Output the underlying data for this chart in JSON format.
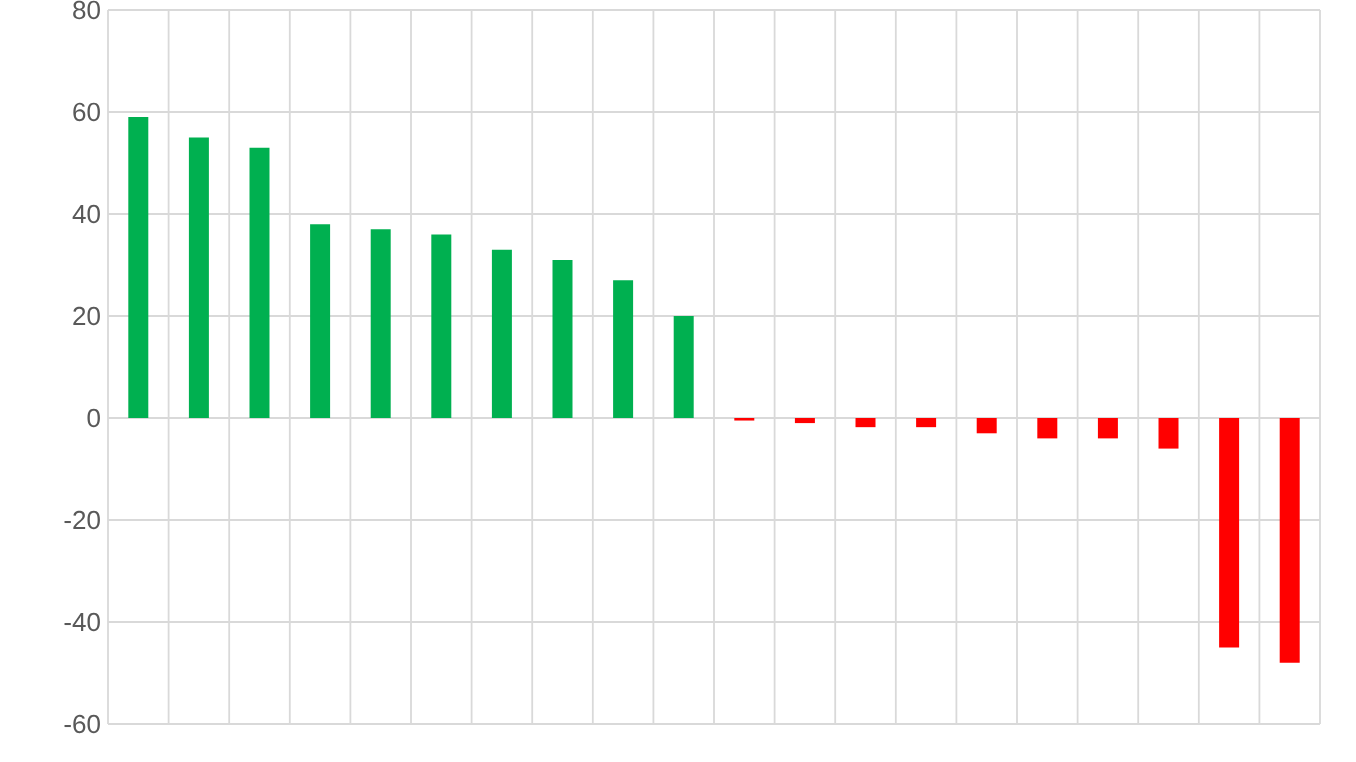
{
  "chart_data": {
    "type": "bar",
    "categories": [
      null,
      null,
      null,
      null,
      null,
      null,
      null,
      null,
      null,
      null,
      null,
      null,
      null,
      null,
      null,
      null,
      null,
      null,
      null,
      null
    ],
    "values": [
      59,
      55,
      53,
      38,
      37,
      36,
      33,
      31,
      27,
      20,
      -0.5,
      -1,
      -1.8,
      -1.8,
      -3,
      -4,
      -4,
      -6,
      -45,
      -48
    ],
    "colors": [
      "#00b050",
      "#00b050",
      "#00b050",
      "#00b050",
      "#00b050",
      "#00b050",
      "#00b050",
      "#00b050",
      "#00b050",
      "#00b050",
      "#ff0000",
      "#ff0000",
      "#ff0000",
      "#ff0000",
      "#ff0000",
      "#ff0000",
      "#ff0000",
      "#ff0000",
      "#ff0000",
      "#ff0000"
    ],
    "ylim": [
      -60,
      80
    ],
    "yticks": [
      -60,
      -40,
      -20,
      0,
      20,
      40,
      60,
      80
    ],
    "grid": true,
    "tick_labels": "y"
  }
}
